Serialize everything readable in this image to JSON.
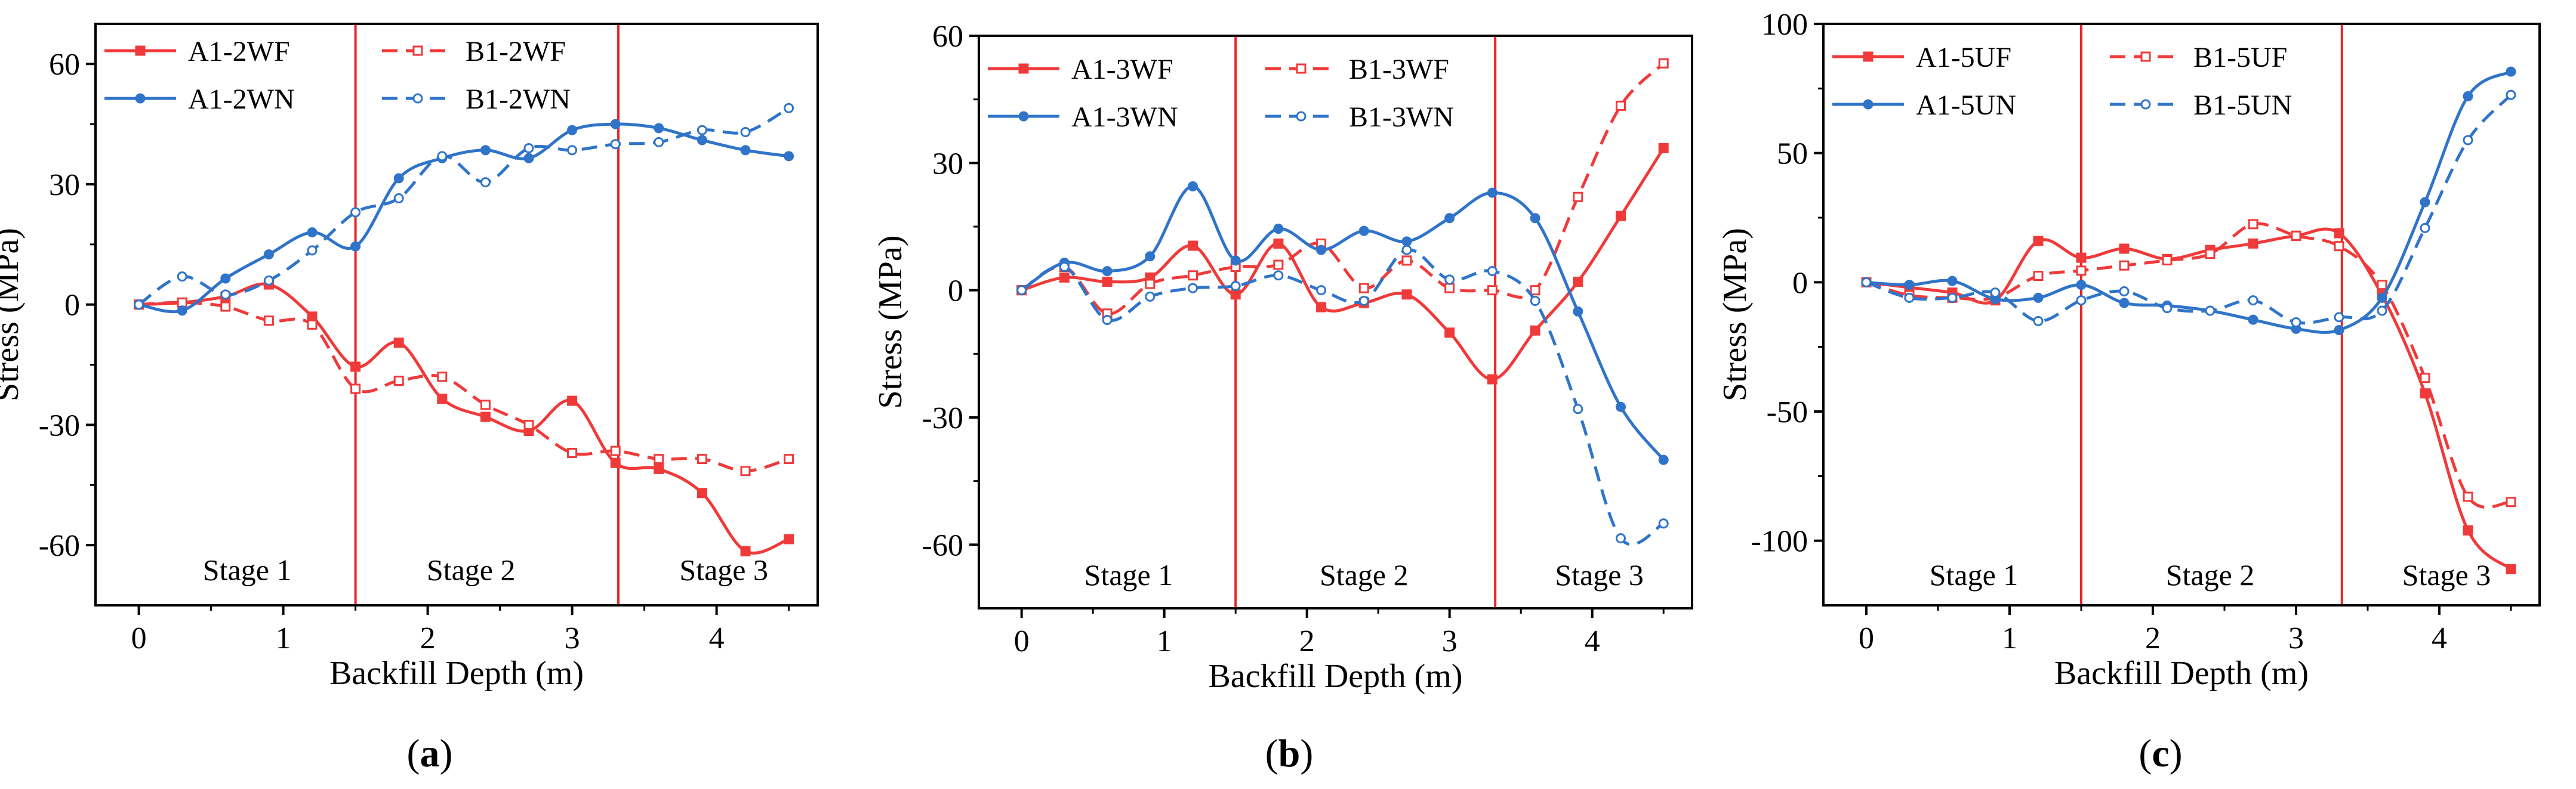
{
  "colors": {
    "red": "#f03a3a",
    "blue": "#2f74c9",
    "axis": "#000000",
    "stage_line": "#e5262a"
  },
  "chart_data": [
    {
      "type": "line",
      "caption": "a",
      "xlabel": "Backfill Depth (m)",
      "ylabel": "Stress (MPa)",
      "xlim": [
        -0.3,
        4.7
      ],
      "ylim": [
        -75,
        70
      ],
      "xticks": [
        0,
        1,
        2,
        3,
        4
      ],
      "yticks": [
        -60,
        -30,
        0,
        30,
        60
      ],
      "grid": false,
      "legend_position": "top-left",
      "stage_lines": [
        1.5,
        3.32
      ],
      "stage_labels": [
        {
          "text": "Stage 1",
          "x": 0.75
        },
        {
          "text": "Stage 2",
          "x": 2.3
        },
        {
          "text": "Stage 3",
          "x": 4.05
        }
      ],
      "stage_label_y": -66,
      "series": [
        {
          "name": "A1-2WF",
          "color": "red",
          "dashed": false,
          "marker": "square-filled",
          "x": [
            0,
            0.3,
            0.6,
            0.9,
            1.2,
            1.5,
            1.8,
            2.1,
            2.4,
            2.7,
            3.0,
            3.3,
            3.6,
            3.9,
            4.2,
            4.5
          ],
          "y": [
            0,
            0.5,
            2,
            5,
            -3,
            -15.5,
            -9.5,
            -23.5,
            -28,
            -31.5,
            -24,
            -39.5,
            -41,
            -47,
            -61.5,
            -58.5
          ]
        },
        {
          "name": "B1-2WF",
          "color": "red",
          "dashed": true,
          "marker": "square-open",
          "x": [
            0,
            0.3,
            0.6,
            0.9,
            1.2,
            1.5,
            1.8,
            2.1,
            2.4,
            2.7,
            3.0,
            3.3,
            3.6,
            3.9,
            4.2,
            4.5
          ],
          "y": [
            0,
            0.5,
            -0.5,
            -4,
            -5,
            -21,
            -19,
            -18,
            -25,
            -30,
            -37,
            -36.5,
            -38.5,
            -38.5,
            -41.5,
            -38.5
          ]
        },
        {
          "name": "A1-2WN",
          "color": "blue",
          "dashed": false,
          "marker": "circle-filled",
          "x": [
            0,
            0.3,
            0.6,
            0.9,
            1.2,
            1.5,
            1.8,
            2.1,
            2.4,
            2.7,
            3.0,
            3.3,
            3.6,
            3.9,
            4.2,
            4.5
          ],
          "y": [
            0,
            -1.5,
            6.5,
            12.5,
            18,
            14.5,
            31.5,
            36.5,
            38.5,
            36.5,
            43.5,
            45,
            44,
            41,
            38.5,
            37
          ]
        },
        {
          "name": "B1-2WN",
          "color": "blue",
          "dashed": true,
          "marker": "circle-open",
          "x": [
            0,
            0.3,
            0.6,
            0.9,
            1.2,
            1.5,
            1.8,
            2.1,
            2.4,
            2.7,
            3.0,
            3.3,
            3.6,
            3.9,
            4.2,
            4.5
          ],
          "y": [
            0,
            7,
            2.5,
            6,
            13.5,
            23,
            26.5,
            37,
            30.5,
            39,
            38.5,
            40,
            40.5,
            43.5,
            43,
            49
          ]
        }
      ]
    },
    {
      "type": "line",
      "caption": "b",
      "xlabel": "Backfill Depth (m)",
      "ylabel": "Stress (MPa)",
      "xlim": [
        -0.3,
        4.7
      ],
      "ylim": [
        -75,
        60
      ],
      "xticks": [
        0,
        1,
        2,
        3,
        4
      ],
      "yticks": [
        -60,
        -30,
        0,
        30,
        60
      ],
      "grid": false,
      "legend_position": "top-left",
      "stage_lines": [
        1.5,
        3.32
      ],
      "stage_labels": [
        {
          "text": "Stage 1",
          "x": 0.75
        },
        {
          "text": "Stage 2",
          "x": 2.4
        },
        {
          "text": "Stage 3",
          "x": 4.05
        }
      ],
      "stage_label_y": -67,
      "series": [
        {
          "name": "A1-3WF",
          "color": "red",
          "dashed": false,
          "marker": "square-filled",
          "x": [
            0,
            0.3,
            0.6,
            0.9,
            1.2,
            1.5,
            1.8,
            2.1,
            2.4,
            2.7,
            3.0,
            3.3,
            3.6,
            3.9,
            4.2,
            4.5
          ],
          "y": [
            0,
            3,
            2,
            3,
            10.5,
            -1,
            11,
            -4,
            -3,
            -1,
            -10,
            -21,
            -9.5,
            2,
            17.5,
            33.5
          ]
        },
        {
          "name": "B1-3WF",
          "color": "red",
          "dashed": true,
          "marker": "square-open",
          "x": [
            0,
            0.3,
            0.6,
            0.9,
            1.2,
            1.5,
            1.8,
            2.1,
            2.4,
            2.7,
            3.0,
            3.3,
            3.6,
            3.9,
            4.2,
            4.5
          ],
          "y": [
            0,
            5.5,
            -5.5,
            1.5,
            3.5,
            5.5,
            6,
            11,
            0.5,
            7,
            0.5,
            0,
            0,
            22,
            43.5,
            53.5
          ]
        },
        {
          "name": "A1-3WN",
          "color": "blue",
          "dashed": false,
          "marker": "circle-filled",
          "x": [
            0,
            0.3,
            0.6,
            0.9,
            1.2,
            1.5,
            1.8,
            2.1,
            2.4,
            2.7,
            3.0,
            3.3,
            3.6,
            3.9,
            4.2,
            4.5
          ],
          "y": [
            0,
            6.5,
            4.5,
            8,
            24.5,
            7,
            14.5,
            9.5,
            14,
            11.5,
            17,
            23,
            17,
            -5,
            -27.5,
            -40
          ]
        },
        {
          "name": "B1-3WN",
          "color": "blue",
          "dashed": true,
          "marker": "circle-open",
          "x": [
            0,
            0.3,
            0.6,
            0.9,
            1.2,
            1.5,
            1.8,
            2.1,
            2.4,
            2.7,
            3.0,
            3.3,
            3.6,
            3.9,
            4.2,
            4.5
          ],
          "y": [
            0,
            5.5,
            -7,
            -1.5,
            0.5,
            1,
            3.5,
            0,
            -2.5,
            9.5,
            2.5,
            4.5,
            -2.5,
            -28,
            -58.5,
            -55
          ]
        }
      ]
    },
    {
      "type": "line",
      "caption": "c",
      "xlabel": "Backfill Depth (m)",
      "ylabel": "Stress (MPa)",
      "xlim": [
        -0.3,
        4.7
      ],
      "ylim": [
        -125,
        100
      ],
      "xticks": [
        0,
        1,
        2,
        3,
        4
      ],
      "yticks": [
        -100,
        -50,
        0,
        50,
        100
      ],
      "grid": false,
      "legend_position": "top-left",
      "stage_lines": [
        1.5,
        3.32
      ],
      "stage_labels": [
        {
          "text": "Stage 1",
          "x": 0.75
        },
        {
          "text": "Stage 2",
          "x": 2.4
        },
        {
          "text": "Stage 3",
          "x": 4.05
        }
      ],
      "stage_label_y": -113,
      "series": [
        {
          "name": "A1-5UF",
          "color": "red",
          "dashed": false,
          "marker": "square-filled",
          "x": [
            0,
            0.3,
            0.6,
            0.9,
            1.2,
            1.5,
            1.8,
            2.1,
            2.4,
            2.7,
            3.0,
            3.3,
            3.6,
            3.9,
            4.2,
            4.5
          ],
          "y": [
            0,
            -2,
            -4,
            -7,
            16,
            9.5,
            13,
            9,
            12.5,
            15,
            18,
            19,
            -5,
            -43,
            -96,
            -111
          ]
        },
        {
          "name": "B1-5UF",
          "color": "red",
          "dashed": true,
          "marker": "square-open",
          "x": [
            0,
            0.3,
            0.6,
            0.9,
            1.2,
            1.5,
            1.8,
            2.1,
            2.4,
            2.7,
            3.0,
            3.3,
            3.6,
            3.9,
            4.2,
            4.5
          ],
          "y": [
            0,
            -5,
            -6,
            -6,
            2.5,
            4.5,
            6.5,
            8.5,
            11,
            22.5,
            18,
            14,
            -1,
            -37,
            -83,
            -85
          ]
        },
        {
          "name": "A1-5UN",
          "color": "blue",
          "dashed": false,
          "marker": "circle-filled",
          "x": [
            0,
            0.3,
            0.6,
            0.9,
            1.2,
            1.5,
            1.8,
            2.1,
            2.4,
            2.7,
            3.0,
            3.3,
            3.6,
            3.9,
            4.2,
            4.5
          ],
          "y": [
            0,
            -1,
            0.5,
            -6.5,
            -6,
            -1,
            -8,
            -9,
            -11,
            -14.5,
            -18,
            -18.5,
            -6,
            31,
            72,
            81.5
          ]
        },
        {
          "name": "B1-5UN",
          "color": "blue",
          "dashed": true,
          "marker": "circle-open",
          "x": [
            0,
            0.3,
            0.6,
            0.9,
            1.2,
            1.5,
            1.8,
            2.1,
            2.4,
            2.7,
            3.0,
            3.3,
            3.6,
            3.9,
            4.2,
            4.5
          ],
          "y": [
            0,
            -6,
            -6,
            -4,
            -15,
            -7,
            -3.5,
            -10,
            -11,
            -7,
            -15.5,
            -13.5,
            -11,
            21,
            55,
            72.5
          ]
        }
      ]
    }
  ]
}
